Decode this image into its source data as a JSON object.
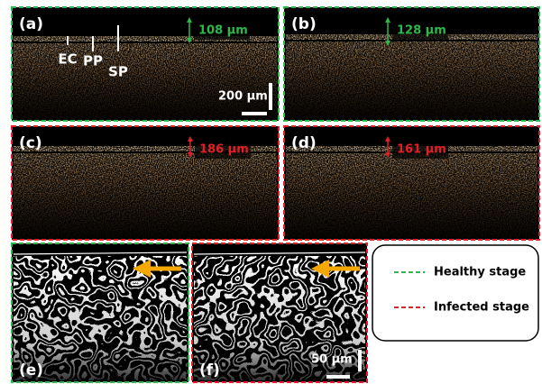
{
  "panels": [
    {
      "label": "(a)",
      "thickness": "108 μm",
      "annotations": [
        "EC",
        "PP",
        "SP"
      ],
      "scale_bar": "200 μm"
    },
    {
      "label": "(b)",
      "thickness": "128 μm"
    },
    {
      "label": "(c)",
      "thickness": "186 μm"
    },
    {
      "label": "(d)",
      "thickness": "161 μm"
    },
    {
      "label": "(e)"
    },
    {
      "label": "(f)",
      "scale_bar": "50 μm"
    }
  ],
  "legend": [
    {
      "label": "Healthy stage"
    },
    {
      "label": "Infected stage"
    }
  ]
}
